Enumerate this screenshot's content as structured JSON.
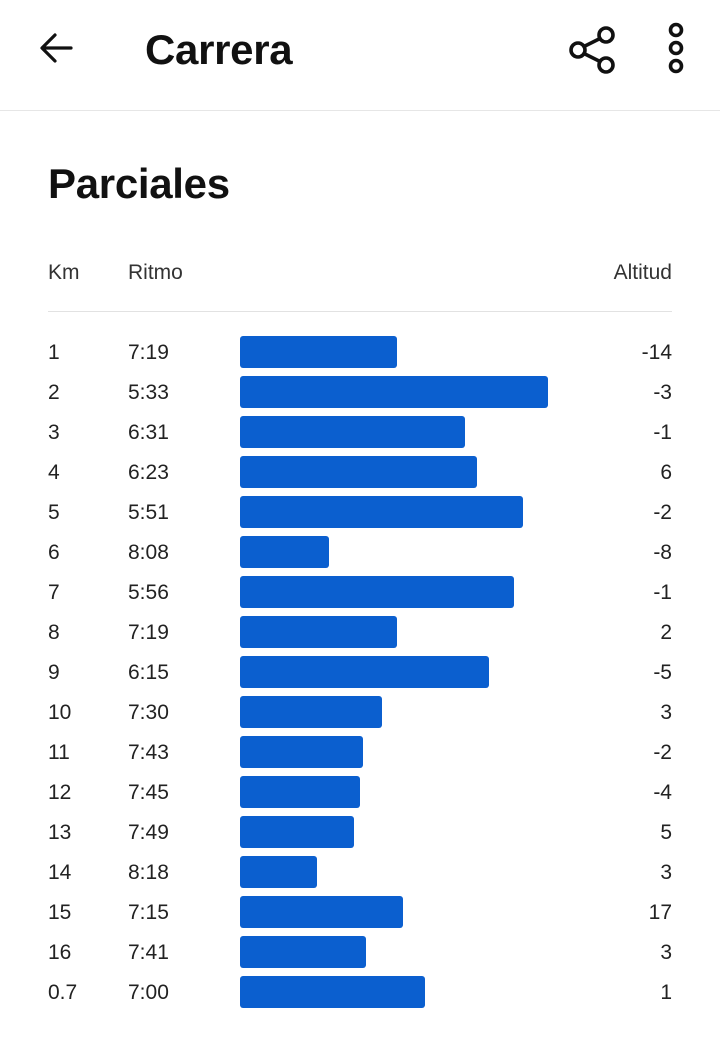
{
  "header": {
    "title": "Carrera",
    "back_icon": "arrow-left-icon",
    "share_icon": "share-icon",
    "more_icon": "more-vertical-icon"
  },
  "splits": {
    "title": "Parciales",
    "columns": {
      "km": "Km",
      "pace": "Ritmo",
      "altitude": "Altitud"
    },
    "bar_color": "#0b5fcf",
    "rows": [
      {
        "km": "1",
        "pace": "7:19",
        "altitude": "-14",
        "bar_fraction": 0.51
      },
      {
        "km": "2",
        "pace": "5:33",
        "altitude": "-3",
        "bar_fraction": 1.0
      },
      {
        "km": "3",
        "pace": "6:31",
        "altitude": "-1",
        "bar_fraction": 0.73
      },
      {
        "km": "4",
        "pace": "6:23",
        "altitude": "6",
        "bar_fraction": 0.77
      },
      {
        "km": "5",
        "pace": "5:51",
        "altitude": "-2",
        "bar_fraction": 0.92
      },
      {
        "km": "6",
        "pace": "8:08",
        "altitude": "-8",
        "bar_fraction": 0.29
      },
      {
        "km": "7",
        "pace": "5:56",
        "altitude": "-1",
        "bar_fraction": 0.89
      },
      {
        "km": "8",
        "pace": "7:19",
        "altitude": "2",
        "bar_fraction": 0.51
      },
      {
        "km": "9",
        "pace": "6:15",
        "altitude": "-5",
        "bar_fraction": 0.81
      },
      {
        "km": "10",
        "pace": "7:30",
        "altitude": "3",
        "bar_fraction": 0.46
      },
      {
        "km": "11",
        "pace": "7:43",
        "altitude": "-2",
        "bar_fraction": 0.4
      },
      {
        "km": "12",
        "pace": "7:45",
        "altitude": "-4",
        "bar_fraction": 0.39
      },
      {
        "km": "13",
        "pace": "7:49",
        "altitude": "5",
        "bar_fraction": 0.37
      },
      {
        "km": "14",
        "pace": "8:18",
        "altitude": "3",
        "bar_fraction": 0.25
      },
      {
        "km": "15",
        "pace": "7:15",
        "altitude": "17",
        "bar_fraction": 0.53
      },
      {
        "km": "16",
        "pace": "7:41",
        "altitude": "3",
        "bar_fraction": 0.41
      },
      {
        "km": "0.7",
        "pace": "7:00",
        "altitude": "1",
        "bar_fraction": 0.6
      }
    ]
  }
}
